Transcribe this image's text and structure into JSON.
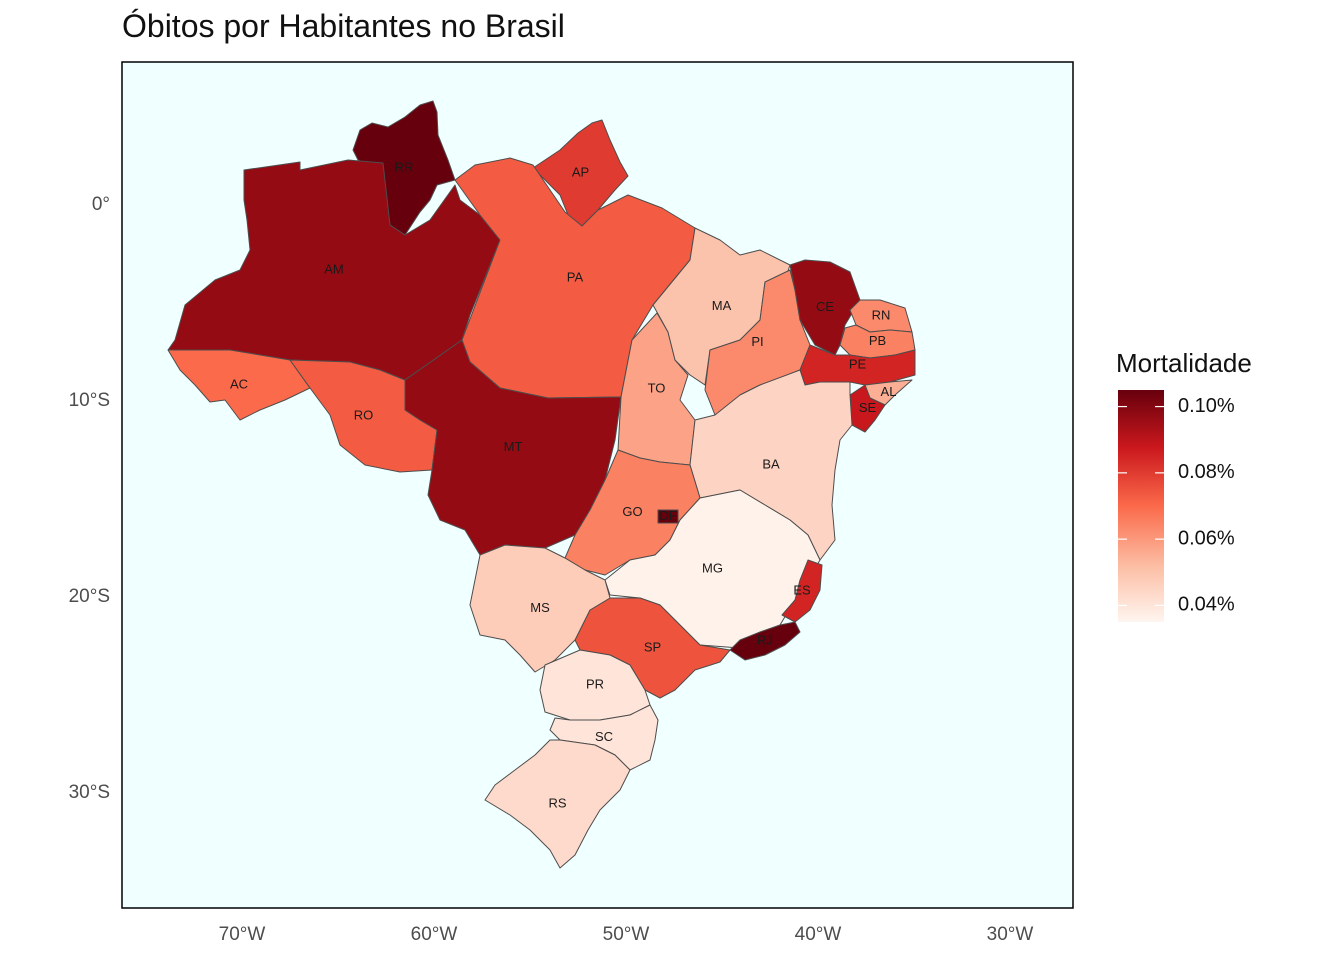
{
  "title": "Óbitos por Habitantes no Brasil",
  "legend": {
    "title": "Mortalidade",
    "min": 0.035,
    "max": 0.105,
    "ticks": [
      {
        "value": 0.1,
        "label": "0.10%"
      },
      {
        "value": 0.08,
        "label": "0.08%"
      },
      {
        "value": 0.06,
        "label": "0.06%"
      },
      {
        "value": 0.04,
        "label": "0.04%"
      }
    ],
    "colors": [
      "#fff5f0",
      "#fcbba1",
      "#fb6a4a",
      "#cb181d",
      "#67000d"
    ]
  },
  "axes": {
    "x_ticks": [
      {
        "lon": -70,
        "label": "70°W"
      },
      {
        "lon": -60,
        "label": "60°W"
      },
      {
        "lon": -50,
        "label": "50°W"
      },
      {
        "lon": -40,
        "label": "40°W"
      },
      {
        "lon": -30,
        "label": "30°W"
      }
    ],
    "y_ticks": [
      {
        "lat": 0,
        "label": "0°"
      },
      {
        "lat": -10,
        "label": "10°S"
      },
      {
        "lat": -20,
        "label": "20°S"
      },
      {
        "lat": -30,
        "label": "30°S"
      }
    ]
  },
  "panel_background": "#f0ffff",
  "states": [
    {
      "code": "RR",
      "value": 0.105
    },
    {
      "code": "AP",
      "value": 0.08
    },
    {
      "code": "AM",
      "value": 0.097
    },
    {
      "code": "PA",
      "value": 0.073
    },
    {
      "code": "AC",
      "value": 0.07
    },
    {
      "code": "RO",
      "value": 0.073
    },
    {
      "code": "MT",
      "value": 0.097
    },
    {
      "code": "TO",
      "value": 0.058
    },
    {
      "code": "MA",
      "value": 0.05
    },
    {
      "code": "PI",
      "value": 0.063
    },
    {
      "code": "CE",
      "value": 0.097
    },
    {
      "code": "RN",
      "value": 0.063
    },
    {
      "code": "PB",
      "value": 0.065
    },
    {
      "code": "PE",
      "value": 0.085
    },
    {
      "code": "AL",
      "value": 0.055
    },
    {
      "code": "SE",
      "value": 0.088
    },
    {
      "code": "BA",
      "value": 0.045
    },
    {
      "code": "GO",
      "value": 0.065
    },
    {
      "code": "DF",
      "value": 0.105
    },
    {
      "code": "MG",
      "value": 0.036
    },
    {
      "code": "ES",
      "value": 0.085
    },
    {
      "code": "RJ",
      "value": 0.105
    },
    {
      "code": "SP",
      "value": 0.075
    },
    {
      "code": "MS",
      "value": 0.047
    },
    {
      "code": "PR",
      "value": 0.04
    },
    {
      "code": "SC",
      "value": 0.04
    },
    {
      "code": "RS",
      "value": 0.043
    }
  ]
}
